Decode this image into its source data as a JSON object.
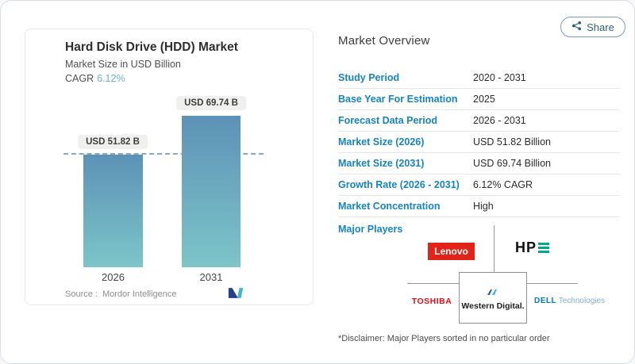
{
  "page": {
    "share_button": {
      "label": "Share"
    }
  },
  "chart_card": {
    "title": "Hard Disk Drive (HDD) Market",
    "subtitle": "Market Size in USD Billion",
    "cagr_label": "CAGR",
    "cagr_value": "6.12%",
    "source_label": "Source :",
    "source_value": "Mordor Intelligence"
  },
  "chart_data": {
    "type": "bar",
    "categories": [
      "2026",
      "2031"
    ],
    "values": [
      51.82,
      69.74
    ],
    "value_labels": [
      "USD 51.82 B",
      "USD 69.74 B"
    ],
    "unit": "USD Billion",
    "title": "Hard Disk Drive (HDD) Market",
    "ylabel": "Market Size in USD Billion",
    "ylim": [
      0,
      70
    ],
    "grid": false,
    "legend": false,
    "reference_line": 51.82,
    "bar_gradient_top": "#5d92b7",
    "bar_gradient_bottom": "#7cc5c8"
  },
  "overview": {
    "heading": "Market Overview",
    "rows": [
      {
        "label": "Study Period",
        "value": "2020 - 2031"
      },
      {
        "label": "Base Year For Estimation",
        "value": "2025"
      },
      {
        "label": "Forecast Data Period",
        "value": "2026 - 2031"
      },
      {
        "label": "Market Size (2026)",
        "value": "USD 51.82 Billion"
      },
      {
        "label": "Market Size (2031)",
        "value": "USD 69.74 Billion"
      },
      {
        "label": "Growth Rate (2026 - 2031)",
        "value": "6.12% CAGR"
      },
      {
        "label": "Market Concentration",
        "value": "High"
      }
    ],
    "major_players_label": "Major Players",
    "players": [
      "Lenovo",
      "HPE",
      "Toshiba",
      "Western Digital",
      "Dell Technologies"
    ],
    "logos": {
      "lenovo": "Lenovo",
      "hpe_prefix": "HP",
      "toshiba": "TOSHIBA",
      "western_digital": "Western Digital.",
      "dell_bold": "DELL",
      "dell_light": "Technologies"
    },
    "disclaimer": "*Disclaimer: Major Players sorted in no particular order"
  },
  "colors": {
    "accent_blue": "#1684c2",
    "cagr_blue": "#66b1c9",
    "lenovo_red": "#e2231a",
    "toshiba_red": "#e90a17",
    "hpe_green": "#01a982",
    "dell_blue": "#0076ce",
    "dashed_line": "#86a9c9"
  }
}
